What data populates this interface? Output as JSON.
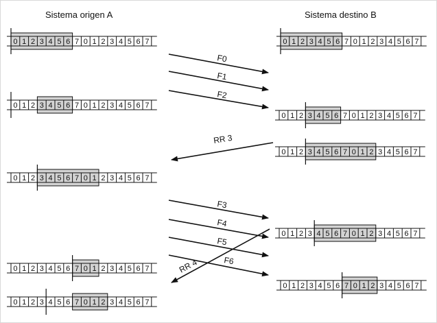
{
  "headers": {
    "left": "Sistema origen A",
    "right": "Sistema destino B"
  },
  "sequence": [
    "0",
    "1",
    "2",
    "3",
    "4",
    "5",
    "6",
    "7",
    "0",
    "1",
    "2",
    "3",
    "4",
    "5",
    "6",
    "7"
  ],
  "colors": {
    "window_fill": "#d3d3d3",
    "line": "#111111",
    "background": "#ffffff"
  },
  "left_rows": [
    {
      "name": "a-row-1",
      "window": [
        0,
        6
      ],
      "marker": 0
    },
    {
      "name": "a-row-2",
      "window": [
        3,
        6
      ],
      "marker": 0
    },
    {
      "name": "a-row-3",
      "window": [
        3,
        9
      ],
      "marker": 3
    },
    {
      "name": "a-row-4",
      "window": [
        7,
        9
      ],
      "marker": 7
    },
    {
      "name": "a-row-5",
      "window": [
        7,
        10
      ],
      "marker": 4
    }
  ],
  "right_rows": [
    {
      "name": "b-row-1",
      "window": [
        0,
        6
      ],
      "marker": 0
    },
    {
      "name": "b-row-2",
      "window": [
        3,
        6
      ],
      "marker": 3
    },
    {
      "name": "b-row-3",
      "window": [
        3,
        10
      ],
      "marker": 3
    },
    {
      "name": "b-row-4",
      "window": [
        4,
        10
      ],
      "marker": 4
    },
    {
      "name": "b-row-5",
      "window": [
        7,
        10
      ],
      "marker": 7
    }
  ],
  "messages": [
    {
      "name": "frame-f0",
      "label": "F0"
    },
    {
      "name": "frame-f1",
      "label": "F1"
    },
    {
      "name": "frame-f2",
      "label": "F2"
    },
    {
      "name": "ack-rr3",
      "label": "RR 3"
    },
    {
      "name": "frame-f3",
      "label": "F3"
    },
    {
      "name": "frame-f4",
      "label": "F4"
    },
    {
      "name": "frame-f5",
      "label": "F5"
    },
    {
      "name": "frame-f6",
      "label": "F6"
    },
    {
      "name": "ack-rr4",
      "label": "RR 4"
    }
  ]
}
